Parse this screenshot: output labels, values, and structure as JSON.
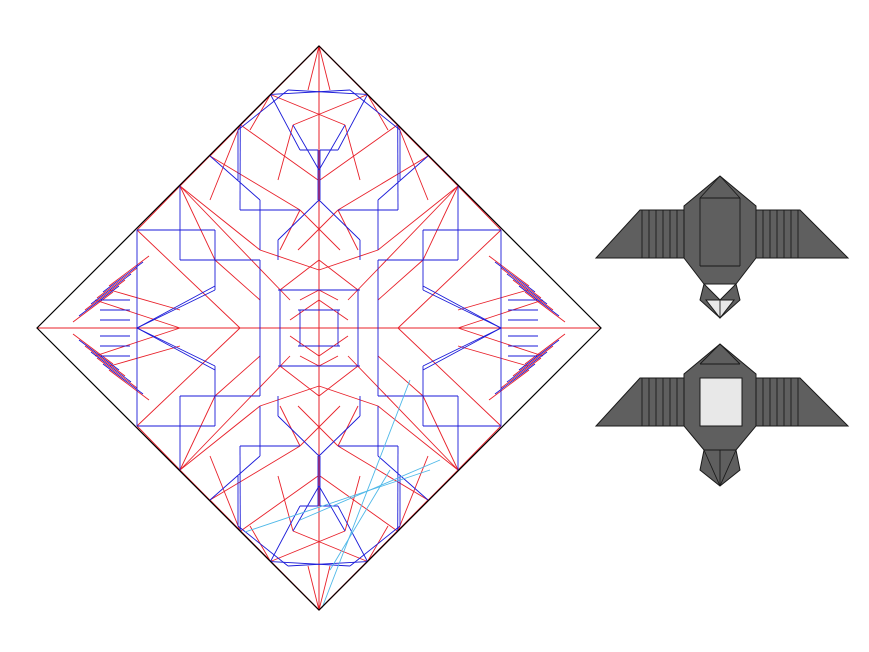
{
  "diagram": {
    "colors": {
      "mountain": "#e8202a",
      "valley": "#1a1ad8",
      "auxiliary": "#4fb8e8",
      "border": "#000000",
      "model_fill": "#5f5f5f",
      "model_stroke": "#1a1a1a",
      "paper_white": "#e8e8e8"
    },
    "views": [
      {
        "name": "crease-pattern"
      },
      {
        "name": "folded-model-front"
      },
      {
        "name": "folded-model-back"
      }
    ]
  }
}
